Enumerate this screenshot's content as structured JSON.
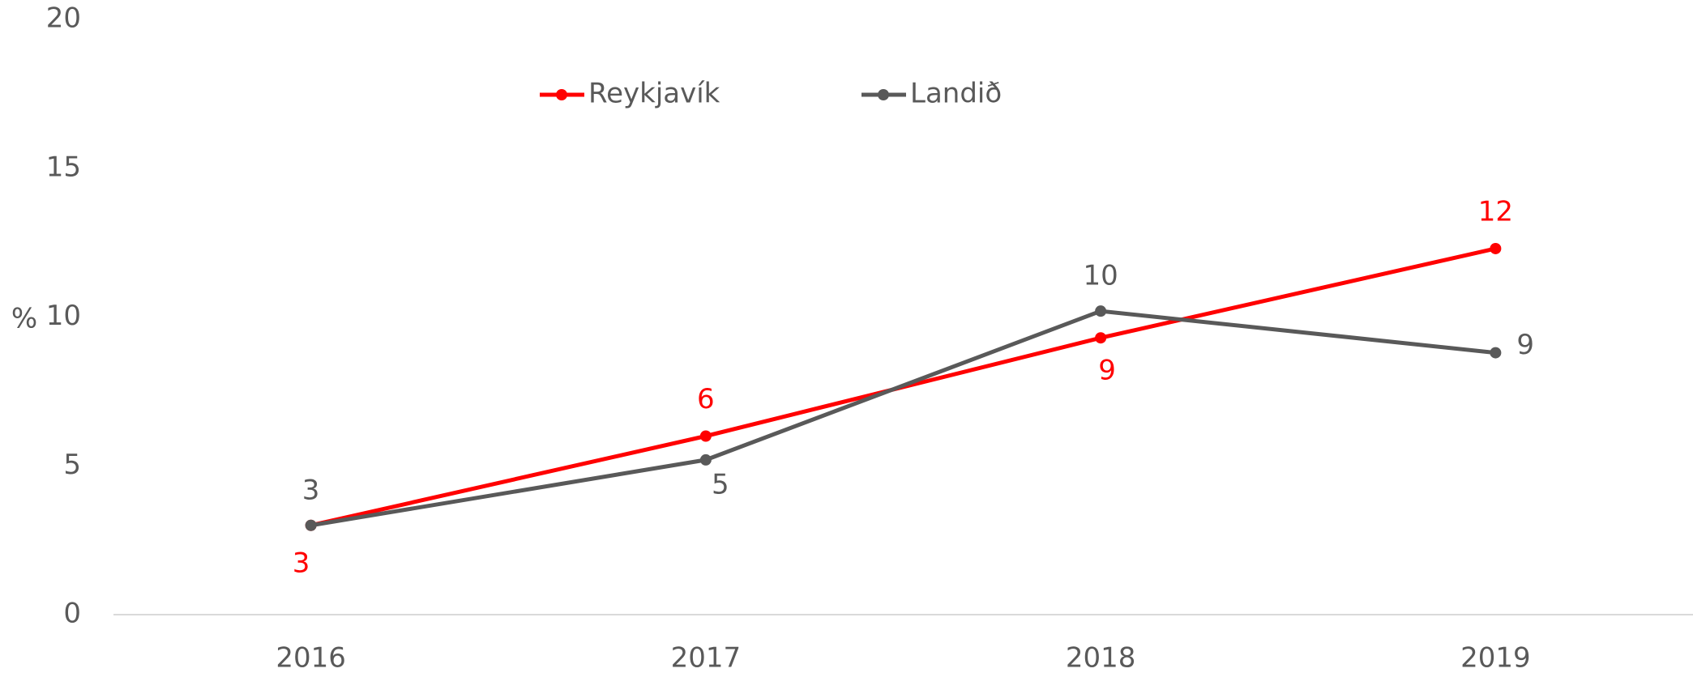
{
  "chart_data": {
    "type": "line",
    "y_label": "%",
    "categories": [
      "2016",
      "2017",
      "2018",
      "2019"
    ],
    "series": [
      {
        "name": "Reykjavík",
        "color": "#ff0000",
        "values": [
          3,
          6,
          9.3,
          12.3
        ],
        "value_labels": [
          "3",
          "6",
          "9",
          "12"
        ]
      },
      {
        "name": "Landið",
        "color": "#595959",
        "values": [
          3,
          5.2,
          10.2,
          8.8
        ],
        "value_labels": [
          "3",
          "5",
          "10",
          "9"
        ]
      }
    ],
    "ylim": [
      0,
      20
    ],
    "yticks": [
      0,
      5,
      10,
      15,
      20
    ],
    "grid": false,
    "legend": "top"
  }
}
